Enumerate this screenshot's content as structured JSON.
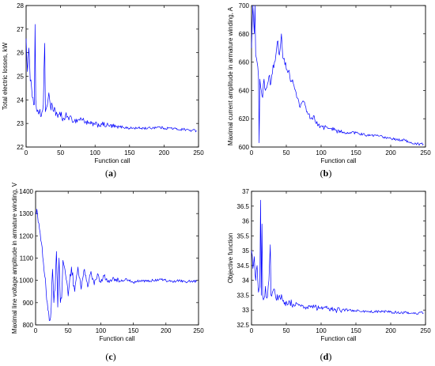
{
  "colors": {
    "line": "#0000ff",
    "axes": "#000000",
    "background": "#ffffff"
  },
  "chart_data": [
    {
      "type": "line",
      "panel": "a",
      "xlabel": "Function call",
      "ylabel": "Total electric losses, kW",
      "xlim": [
        0,
        250
      ],
      "ylim": [
        22,
        28
      ],
      "xticks": [
        0,
        50,
        100,
        150,
        200,
        250
      ],
      "yticks": [
        22,
        23,
        24,
        25,
        26,
        27,
        28
      ],
      "grid": false,
      "keypoints": [
        [
          0,
          26.6
        ],
        [
          2,
          25.2
        ],
        [
          4,
          26.2
        ],
        [
          6,
          24.8
        ],
        [
          8,
          24.5
        ],
        [
          10,
          24.1
        ],
        [
          12,
          23.8
        ],
        [
          13,
          27.2
        ],
        [
          14,
          24.0
        ],
        [
          16,
          23.5
        ],
        [
          18,
          23.4
        ],
        [
          20,
          23.6
        ],
        [
          22,
          23.3
        ],
        [
          25,
          23.8
        ],
        [
          27,
          26.4
        ],
        [
          28,
          23.5
        ],
        [
          30,
          23.7
        ],
        [
          33,
          24.3
        ],
        [
          35,
          23.8
        ],
        [
          40,
          23.5
        ],
        [
          45,
          23.4
        ],
        [
          50,
          23.3
        ],
        [
          55,
          23.2
        ],
        [
          60,
          23.3
        ],
        [
          70,
          23.1
        ],
        [
          80,
          23.2
        ],
        [
          90,
          23.0
        ],
        [
          100,
          22.95
        ],
        [
          110,
          22.95
        ],
        [
          120,
          22.9
        ],
        [
          130,
          22.85
        ],
        [
          140,
          22.85
        ],
        [
          150,
          22.8
        ],
        [
          160,
          22.8
        ],
        [
          170,
          22.8
        ],
        [
          180,
          22.8
        ],
        [
          190,
          22.85
        ],
        [
          200,
          22.8
        ],
        [
          210,
          22.8
        ],
        [
          220,
          22.75
        ],
        [
          230,
          22.75
        ],
        [
          240,
          22.7
        ],
        [
          247,
          22.7
        ]
      ]
    },
    {
      "type": "line",
      "panel": "b",
      "xlabel": "Function call",
      "ylabel": "Maximal current amplitude in armature winding, A",
      "xlim": [
        0,
        250
      ],
      "ylim": [
        600,
        700
      ],
      "xticks": [
        0,
        50,
        100,
        150,
        200,
        250
      ],
      "yticks": [
        600,
        620,
        640,
        660,
        680,
        700
      ],
      "grid": false,
      "keypoints": [
        [
          0,
          670
        ],
        [
          2,
          700
        ],
        [
          4,
          680
        ],
        [
          5,
          700
        ],
        [
          6,
          665
        ],
        [
          8,
          660
        ],
        [
          10,
          650
        ],
        [
          11,
          603
        ],
        [
          12,
          648
        ],
        [
          14,
          640
        ],
        [
          16,
          635
        ],
        [
          18,
          648
        ],
        [
          20,
          640
        ],
        [
          22,
          642
        ],
        [
          25,
          650
        ],
        [
          28,
          645
        ],
        [
          30,
          652
        ],
        [
          33,
          660
        ],
        [
          35,
          665
        ],
        [
          38,
          675
        ],
        [
          40,
          665
        ],
        [
          43,
          680
        ],
        [
          45,
          663
        ],
        [
          48,
          658
        ],
        [
          50,
          655
        ],
        [
          55,
          650
        ],
        [
          60,
          645
        ],
        [
          65,
          635
        ],
        [
          70,
          628
        ],
        [
          75,
          632
        ],
        [
          80,
          625
        ],
        [
          85,
          620
        ],
        [
          90,
          622
        ],
        [
          95,
          615
        ],
        [
          100,
          615
        ],
        [
          110,
          613
        ],
        [
          120,
          612
        ],
        [
          130,
          610
        ],
        [
          140,
          610
        ],
        [
          150,
          610
        ],
        [
          160,
          609
        ],
        [
          170,
          608
        ],
        [
          180,
          608
        ],
        [
          190,
          607
        ],
        [
          200,
          606
        ],
        [
          210,
          605
        ],
        [
          220,
          605
        ],
        [
          230,
          603
        ],
        [
          240,
          602
        ],
        [
          247,
          602
        ]
      ]
    },
    {
      "type": "line",
      "panel": "c",
      "xlabel": "Function call",
      "ylabel": "Maximal line voltage amplitude in armature winding, V",
      "xlim": [
        0,
        250
      ],
      "ylim": [
        800,
        1400
      ],
      "xticks": [
        0,
        50,
        100,
        150,
        200,
        250
      ],
      "yticks": [
        800,
        900,
        1000,
        1100,
        1200,
        1300,
        1400
      ],
      "grid": false,
      "keypoints": [
        [
          0,
          1300
        ],
        [
          2,
          1320
        ],
        [
          4,
          1260
        ],
        [
          6,
          1230
        ],
        [
          8,
          1180
        ],
        [
          10,
          1150
        ],
        [
          12,
          1080
        ],
        [
          14,
          1020
        ],
        [
          16,
          960
        ],
        [
          18,
          900
        ],
        [
          20,
          860
        ],
        [
          22,
          820
        ],
        [
          24,
          880
        ],
        [
          26,
          1050
        ],
        [
          28,
          900
        ],
        [
          30,
          960
        ],
        [
          32,
          1130
        ],
        [
          34,
          880
        ],
        [
          36,
          1100
        ],
        [
          38,
          900
        ],
        [
          40,
          920
        ],
        [
          42,
          1090
        ],
        [
          45,
          1050
        ],
        [
          50,
          930
        ],
        [
          55,
          1060
        ],
        [
          60,
          950
        ],
        [
          65,
          1060
        ],
        [
          70,
          960
        ],
        [
          75,
          1050
        ],
        [
          80,
          970
        ],
        [
          85,
          1040
        ],
        [
          90,
          980
        ],
        [
          95,
          1030
        ],
        [
          100,
          990
        ],
        [
          105,
          1020
        ],
        [
          110,
          995
        ],
        [
          120,
          1010
        ],
        [
          130,
          995
        ],
        [
          140,
          1005
        ],
        [
          150,
          990
        ],
        [
          160,
          1000
        ],
        [
          170,
          995
        ],
        [
          180,
          1000
        ],
        [
          190,
          1005
        ],
        [
          200,
          1000
        ],
        [
          210,
          995
        ],
        [
          220,
          1000
        ],
        [
          230,
          995
        ],
        [
          240,
          995
        ],
        [
          247,
          995
        ]
      ]
    },
    {
      "type": "line",
      "panel": "d",
      "xlabel": "Function call",
      "ylabel": "Objective function",
      "xlim": [
        0,
        250
      ],
      "ylim": [
        32.5,
        37
      ],
      "xticks": [
        0,
        50,
        100,
        150,
        200,
        250
      ],
      "yticks": [
        32.5,
        33,
        33.5,
        34,
        34.5,
        35,
        35.5,
        36,
        36.5,
        37
      ],
      "grid": false,
      "keypoints": [
        [
          0,
          35.0
        ],
        [
          2,
          34.4
        ],
        [
          4,
          34.8
        ],
        [
          6,
          34.0
        ],
        [
          8,
          34.5
        ],
        [
          10,
          33.6
        ],
        [
          12,
          33.8
        ],
        [
          13,
          36.7
        ],
        [
          14,
          33.5
        ],
        [
          15,
          35.9
        ],
        [
          16,
          33.5
        ],
        [
          18,
          33.4
        ],
        [
          20,
          33.8
        ],
        [
          22,
          33.4
        ],
        [
          25,
          34.0
        ],
        [
          27,
          35.2
        ],
        [
          28,
          33.5
        ],
        [
          30,
          33.6
        ],
        [
          33,
          33.7
        ],
        [
          35,
          33.4
        ],
        [
          40,
          33.5
        ],
        [
          45,
          33.3
        ],
        [
          50,
          33.3
        ],
        [
          55,
          33.25
        ],
        [
          60,
          33.2
        ],
        [
          70,
          33.15
        ],
        [
          80,
          33.1
        ],
        [
          90,
          33.1
        ],
        [
          100,
          33.05
        ],
        [
          110,
          33.05
        ],
        [
          120,
          33.0
        ],
        [
          130,
          33.0
        ],
        [
          140,
          33.0
        ],
        [
          150,
          32.98
        ],
        [
          160,
          32.95
        ],
        [
          170,
          32.95
        ],
        [
          180,
          32.95
        ],
        [
          190,
          32.95
        ],
        [
          200,
          32.93
        ],
        [
          210,
          32.92
        ],
        [
          220,
          32.92
        ],
        [
          230,
          32.9
        ],
        [
          240,
          32.9
        ],
        [
          247,
          32.9
        ]
      ]
    }
  ],
  "panels": [
    {
      "prefix": "(",
      "letter": "a",
      "suffix": ")"
    },
    {
      "prefix": "(",
      "letter": "b",
      "suffix": ")"
    },
    {
      "prefix": "(",
      "letter": "c",
      "suffix": ")"
    },
    {
      "prefix": "(",
      "letter": "d",
      "suffix": ")"
    }
  ]
}
